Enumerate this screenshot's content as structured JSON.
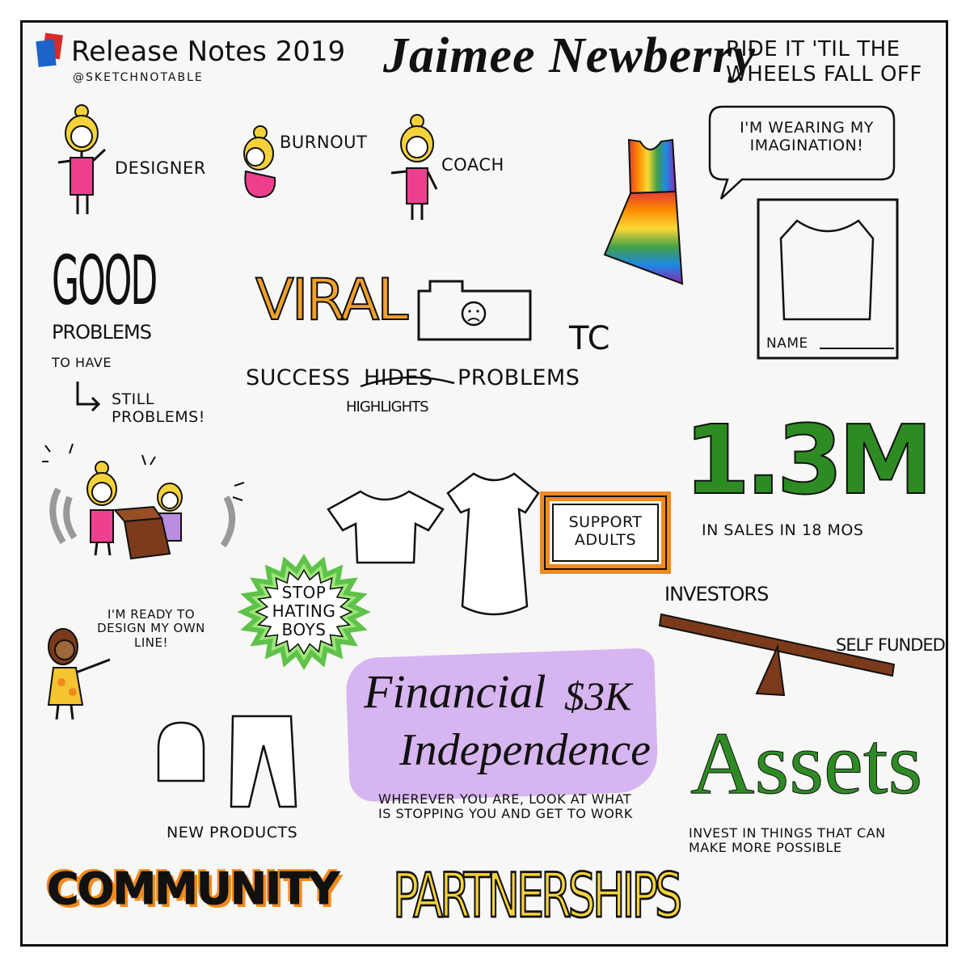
{
  "header": {
    "event": "Release Notes 2019",
    "handle": "@SKETCHNOTABLE",
    "speaker": "Jaimee Newberry",
    "tagline": "RIDE IT 'TIL THE WHEELS FALL OFF"
  },
  "roles": [
    "DESIGNER",
    "BURNOUT",
    "COACH"
  ],
  "speech": "I'M WEARING MY IMAGINATION!",
  "form_label": "NAME",
  "good": {
    "word": "GOOD",
    "problems": "PROBLEMS",
    "to_have": "TO HAVE",
    "still": "STILL PROBLEMS!"
  },
  "viral": {
    "word": "VIRAL",
    "tc": "TC",
    "success_prefix": "SUCCESS",
    "hides": "HIDES",
    "problems": "PROBLEMS",
    "highlights": "HIGHLIGHTS"
  },
  "stats": {
    "value": "1.3M",
    "caption": "IN SALES IN 18 MOS"
  },
  "support": "SUPPORT ADULTS",
  "stop_badge": "STOP HATING BOYS",
  "girl_quote": "I'M READY TO DESIGN MY OWN LINE!",
  "seesaw": {
    "investors": "INVESTORS",
    "self_funded": "SELF FUNDED"
  },
  "financial": {
    "line1": "Financial",
    "amount": "$3K",
    "line2": "Independence",
    "note": "WHEREVER YOU ARE, LOOK AT WHAT IS STOPPING YOU AND GET TO WORK"
  },
  "new_products": "NEW PRODUCTS",
  "assets": {
    "word": "Assets",
    "note": "INVEST IN THINGS THAT CAN MAKE MORE POSSIBLE"
  },
  "footer_words": {
    "community": "COMMUNITY",
    "partnerships": "PARTNERSHIPS"
  },
  "colors": {
    "orange": "#f08a1e",
    "green": "#2e8b24",
    "lightgreen": "#9ee77a",
    "pink": "#ee3f8f",
    "yellow": "#f5d23c",
    "purple": "#d7b5f0",
    "brown": "#7a3a1b"
  }
}
